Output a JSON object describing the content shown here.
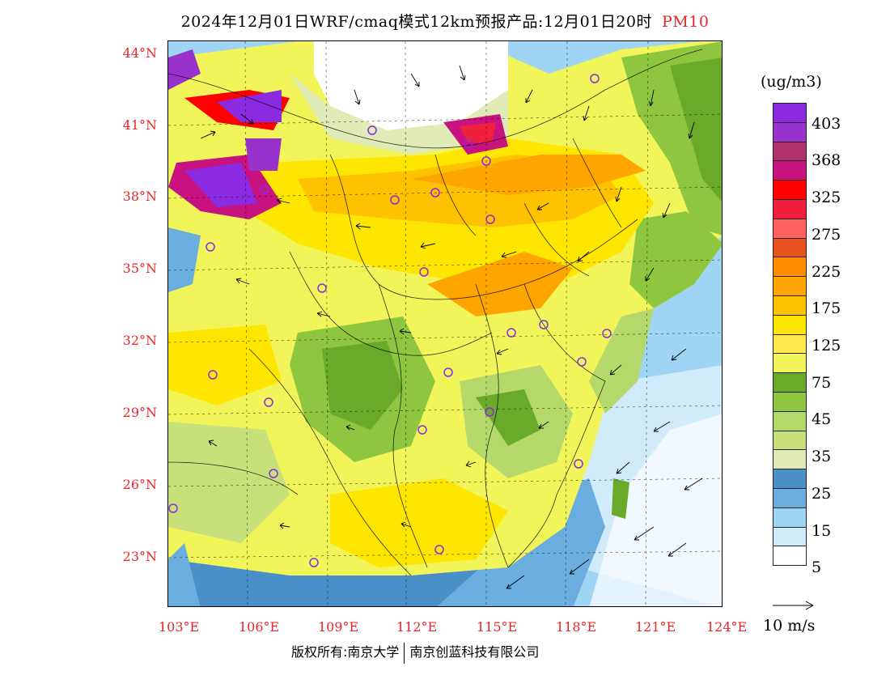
{
  "title": {
    "main": "2024年12月01日WRF/cmaq模式12km预报产品:12月01日20时",
    "variable": "PM10",
    "variable_color": "#e8262b"
  },
  "map": {
    "lat_labels": [
      "44°N",
      "41°N",
      "38°N",
      "35°N",
      "32°N",
      "29°N",
      "26°N",
      "23°N"
    ],
    "lon_labels": [
      "103°E",
      "106°E",
      "109°E",
      "112°E",
      "115°E",
      "118°E",
      "121°E",
      "124°E"
    ]
  },
  "legend": {
    "unit": "(ug/m3)",
    "colors": [
      "#8a2be2",
      "#9932cc",
      "#b0306a",
      "#c8127f",
      "#ff0000",
      "#f0203c",
      "#ff6060",
      "#e85020",
      "#ff8c00",
      "#ffa500",
      "#ffc200",
      "#ffe600",
      "#ffe84a",
      "#f2f55a",
      "#6aaa2a",
      "#8ec63f",
      "#b5d86a",
      "#c8e07a",
      "#e0ebb8",
      "#4a90c8",
      "#6aaee0",
      "#a0d4f5",
      "#d0ecfb",
      "#ffffff"
    ],
    "labels": [
      "403",
      "368",
      "325",
      "275",
      "225",
      "175",
      "125",
      "75",
      "45",
      "35",
      "25",
      "15",
      "5"
    ]
  },
  "wind_scale": {
    "label": "10 m/s"
  },
  "footer": {
    "left": "版权所有:南京大学",
    "right": "南京创蓝科技有限公司"
  }
}
